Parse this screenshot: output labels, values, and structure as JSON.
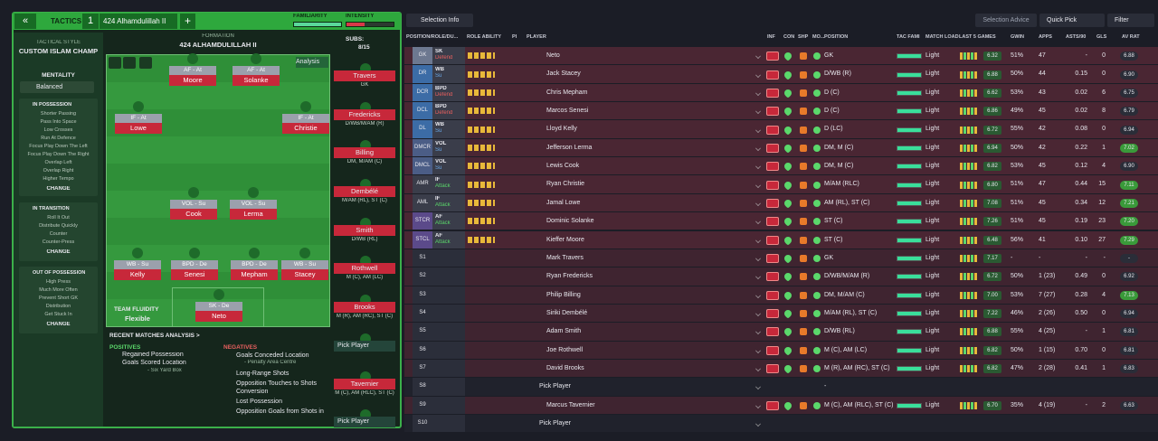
{
  "header": {
    "back": "«",
    "tactics_label": "TACTICS",
    "slot": "1",
    "tactic_name": "424 Alhamdulillah II",
    "add": "+",
    "familiarity": "FAMILIARITY",
    "intensity": "INTENSITY"
  },
  "sidebar": {
    "style_label": "TACTICAL STYLE",
    "style": "CUSTOM ISLAM CHAMP",
    "mentality_label": "MENTALITY",
    "mentality": "Balanced",
    "sections": [
      {
        "title": "IN POSSESSION",
        "items": [
          "Shorter Passing",
          "Pass Into Space",
          "Low Crosses",
          "Run At Defence",
          "Focus Play Down The Left",
          "Focus Play Down The Right",
          "Overlap Left",
          "Overlap Right",
          "Higher Tempo"
        ],
        "change": "CHANGE"
      },
      {
        "title": "IN TRANSITION",
        "items": [
          "Roll It Out",
          "Distribute Quickly",
          "Counter",
          "Counter-Press"
        ],
        "change": "CHANGE"
      },
      {
        "title": "OUT OF POSSESSION",
        "items": [
          "High Press",
          "Much More Often",
          "Prevent Short GK",
          "Distribution",
          "Get Stuck In"
        ],
        "change": "CHANGE"
      }
    ]
  },
  "pitch": {
    "formation_label": "FORMATION",
    "formation": "424 ALHAMDULILLAH II",
    "subs_label": "SUBS:",
    "subs": "8/15",
    "analysis": "Analysis",
    "fluidity_label": "TEAM FLUIDITY",
    "fluidity": "Flexible",
    "positions": [
      {
        "role": "AF - At",
        "name": "Moore"
      },
      {
        "role": "AF - At",
        "name": "Solanke"
      },
      {
        "role": "IF - At",
        "name": "Lowe"
      },
      {
        "role": "IF - At",
        "name": "Christie"
      },
      {
        "role": "VOL - Su",
        "name": "Cook"
      },
      {
        "role": "VOL - Su",
        "name": "Lerma"
      },
      {
        "role": "WB - Su",
        "name": "Kelly"
      },
      {
        "role": "BPD - De",
        "name": "Senesi"
      },
      {
        "role": "BPD - De",
        "name": "Mepham"
      },
      {
        "role": "WB - Su",
        "name": "Stacey"
      },
      {
        "role": "SK - De",
        "name": "Neto"
      }
    ],
    "bench": [
      {
        "name": "Travers",
        "pos": "GK"
      },
      {
        "name": "Fredericks",
        "pos": "D/WB/M/AM (R)"
      },
      {
        "name": "Billing",
        "pos": "DM, M/AM (C)"
      },
      {
        "name": "Dembélé",
        "pos": "M/AM (RL), ST (C)"
      },
      {
        "name": "Smith",
        "pos": "D/WB (RL)"
      },
      {
        "name": "Rothwell",
        "pos": "M (C), AM (LC)"
      },
      {
        "name": "Brooks",
        "pos": "M (R), AM (RC), ST (C)"
      },
      {
        "name": "Pick Player"
      },
      {
        "name": "Tavernier",
        "pos": "M (C), AM (RLC), ST (C)"
      },
      {
        "name": "Pick Player"
      }
    ]
  },
  "analysis": {
    "title": "RECENT MATCHES ANALYSIS >",
    "positives_label": "POSITIVES",
    "positives": [
      {
        "text": "Regained Possession"
      },
      {
        "text": "Goals Scored Location",
        "sub": "- Six Yard Box"
      }
    ],
    "negatives_label": "NEGATIVES",
    "negatives": [
      {
        "text": "Goals Conceded Location",
        "sub": "- Penalty Area Centre"
      },
      {
        "text": "Long-Range Shots"
      },
      {
        "text": "Opposition Touches to Shots Conversion"
      },
      {
        "text": "Lost Possession"
      },
      {
        "text": "Opposition Goals from Shots in"
      }
    ]
  },
  "table": {
    "selection_info": "Selection Info",
    "advice": "Selection Advice",
    "quick_pick": "Quick Pick",
    "filter": "Filter",
    "columns": [
      "POSITION/ROLE/DU...",
      "ROLE ABILITY",
      "PI",
      "PLAYER",
      "INF",
      "CON",
      "SHP",
      "MO...",
      "POSITION",
      "TAC FAMI",
      "MATCH LOAD",
      "LAST 5 GAMES",
      "GWIN",
      "APPS",
      "ASTS/90",
      "GLS",
      "AV RAT"
    ],
    "rows": [
      {
        "pos": "GK",
        "role": "SK",
        "duty": "Defend",
        "name": "Neto",
        "position": "GK",
        "load": "Light",
        "last5": "6.32",
        "gwin": "51%",
        "apps": "47",
        "asts": "-",
        "gls": "0",
        "avrat": "6.88"
      },
      {
        "pos": "DR",
        "role": "WB",
        "duty": "Su",
        "name": "Jack Stacey",
        "position": "D/WB (R)",
        "load": "Light",
        "last5": "6.88",
        "gwin": "50%",
        "apps": "44",
        "asts": "0.15",
        "gls": "0",
        "avrat": "6.90"
      },
      {
        "pos": "DCR",
        "role": "BPD",
        "duty": "Defend",
        "name": "Chris Mepham",
        "position": "D (C)",
        "load": "Light",
        "last5": "6.62",
        "gwin": "53%",
        "apps": "43",
        "asts": "0.02",
        "gls": "6",
        "avrat": "6.75"
      },
      {
        "pos": "DCL",
        "role": "BPD",
        "duty": "Defend",
        "name": "Marcos Senesi",
        "position": "D (C)",
        "load": "Light",
        "last5": "6.86",
        "gwin": "49%",
        "apps": "45",
        "asts": "0.02",
        "gls": "8",
        "avrat": "6.79"
      },
      {
        "pos": "DL",
        "role": "WB",
        "duty": "Su",
        "name": "Lloyd Kelly",
        "position": "D (LC)",
        "load": "Light",
        "last5": "6.72",
        "gwin": "55%",
        "apps": "42",
        "asts": "0.08",
        "gls": "0",
        "avrat": "6.94"
      },
      {
        "pos": "DMCR",
        "role": "VOL",
        "duty": "Su",
        "name": "Jefferson Lerma",
        "position": "DM, M (C)",
        "load": "Light",
        "last5": "6.94",
        "gwin": "50%",
        "apps": "42",
        "asts": "0.22",
        "gls": "1",
        "avrat": "7.02"
      },
      {
        "pos": "DMCL",
        "role": "VOL",
        "duty": "Su",
        "name": "Lewis Cook",
        "position": "DM, M (C)",
        "load": "Light",
        "last5": "6.82",
        "gwin": "53%",
        "apps": "45",
        "asts": "0.12",
        "gls": "4",
        "avrat": "6.90"
      },
      {
        "pos": "AMR",
        "role": "IF",
        "duty": "Attack",
        "name": "Ryan Christie",
        "position": "M/AM (RLC)",
        "load": "Light",
        "last5": "6.80",
        "gwin": "51%",
        "apps": "47",
        "asts": "0.44",
        "gls": "15",
        "avrat": "7.11"
      },
      {
        "pos": "AML",
        "role": "IF",
        "duty": "Attack",
        "name": "Jamal Lowe",
        "position": "AM (RL), ST (C)",
        "load": "Light",
        "last5": "7.08",
        "gwin": "51%",
        "apps": "45",
        "asts": "0.34",
        "gls": "12",
        "avrat": "7.21"
      },
      {
        "pos": "STCR",
        "role": "AF",
        "duty": "Attack",
        "name": "Dominic Solanke",
        "position": "ST (C)",
        "load": "Light",
        "last5": "7.26",
        "gwin": "51%",
        "apps": "45",
        "asts": "0.19",
        "gls": "23",
        "avrat": "7.20"
      },
      {
        "pos": "STCL",
        "role": "AF",
        "duty": "Attack",
        "name": "Kieffer Moore",
        "position": "ST (C)",
        "load": "Light",
        "last5": "6.48",
        "gwin": "56%",
        "apps": "41",
        "asts": "0.10",
        "gls": "27",
        "avrat": "7.29"
      },
      {
        "pos": "S1",
        "name": "Mark Travers",
        "position": "GK",
        "load": "Light",
        "last5": "7.17",
        "gwin": "-",
        "apps": "-",
        "asts": "-",
        "gls": "-",
        "avrat": "-"
      },
      {
        "pos": "S2",
        "name": "Ryan Fredericks",
        "position": "D/WB/M/AM (R)",
        "load": "Light",
        "last5": "6.72",
        "gwin": "50%",
        "apps": "1 (23)",
        "asts": "0.49",
        "gls": "0",
        "avrat": "6.92"
      },
      {
        "pos": "S3",
        "name": "Philip Billing",
        "position": "DM, M/AM (C)",
        "load": "Light",
        "last5": "7.00",
        "gwin": "53%",
        "apps": "7 (27)",
        "asts": "0.28",
        "gls": "4",
        "avrat": "7.13"
      },
      {
        "pos": "S4",
        "name": "Siriki Dembélé",
        "position": "M/AM (RL), ST (C)",
        "load": "Light",
        "last5": "7.22",
        "gwin": "46%",
        "apps": "2 (26)",
        "asts": "0.50",
        "gls": "0",
        "avrat": "6.94"
      },
      {
        "pos": "S5",
        "name": "Adam Smith",
        "position": "D/WB (RL)",
        "load": "Light",
        "last5": "6.88",
        "gwin": "55%",
        "apps": "4 (25)",
        "asts": "-",
        "gls": "1",
        "avrat": "6.81"
      },
      {
        "pos": "S6",
        "name": "Joe Rothwell",
        "position": "M (C), AM (LC)",
        "load": "Light",
        "last5": "6.82",
        "gwin": "50%",
        "apps": "1 (15)",
        "asts": "0.70",
        "gls": "0",
        "avrat": "6.81"
      },
      {
        "pos": "S7",
        "name": "David Brooks",
        "position": "M (R), AM (RC), ST (C)",
        "load": "Light",
        "last5": "6.82",
        "gwin": "47%",
        "apps": "2 (28)",
        "asts": "0.41",
        "gls": "1",
        "avrat": "6.83"
      },
      {
        "pos": "S8",
        "name": "Pick Player",
        "position": "-"
      },
      {
        "pos": "S9",
        "name": "Marcus Tavernier",
        "position": "M (C), AM (RLC), ST (C)",
        "load": "Light",
        "last5": "6.70",
        "gwin": "35%",
        "apps": "4 (19)",
        "asts": "-",
        "gls": "2",
        "avrat": "6.63"
      },
      {
        "pos": "S10",
        "name": "Pick Player"
      }
    ]
  }
}
